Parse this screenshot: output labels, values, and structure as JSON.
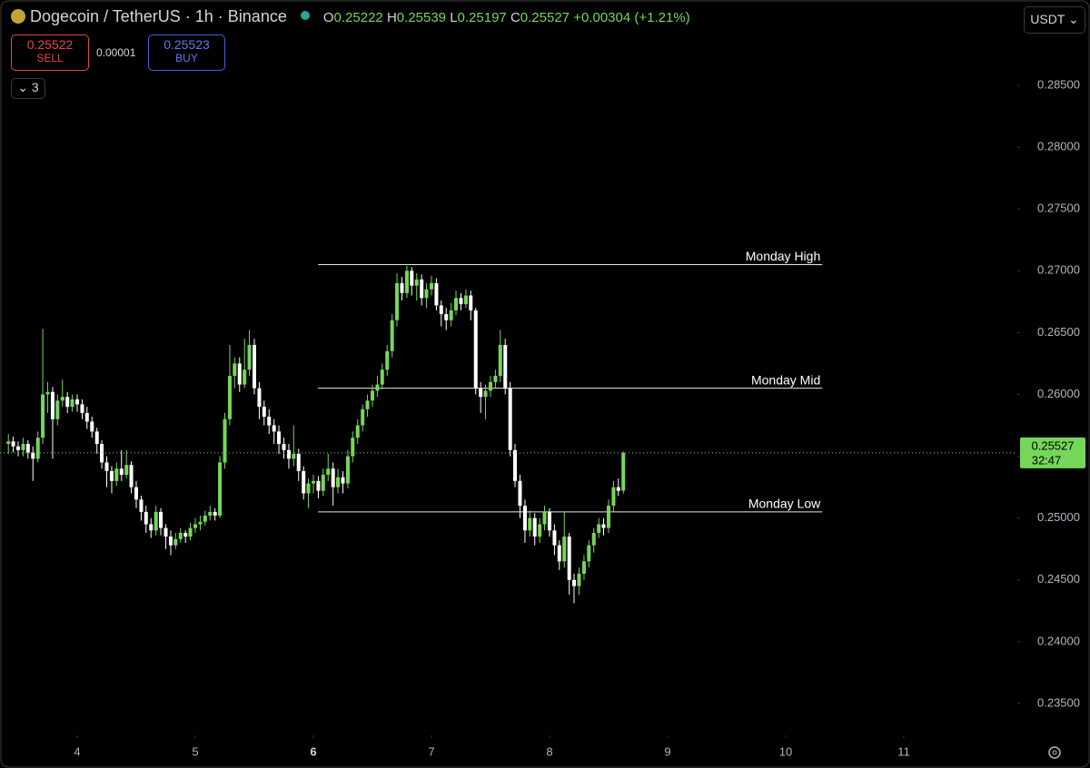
{
  "header": {
    "title": "Dogecoin / TetherUS · 1h · Binance",
    "ohlc_letters": [
      "O",
      "H",
      "L",
      "C"
    ],
    "change": "+0.00304 (+1.21%)",
    "sell_price": "0.25522",
    "sell_label": "SELL",
    "spread": "0.00001",
    "buy_price": "0.25523",
    "buy_label": "BUY",
    "indicators": "3",
    "currency": "USDT",
    "countdown": "32:47"
  },
  "chart_data": {
    "type": "candlestick",
    "up_color": "#76d65a",
    "down_color": "#ffffff",
    "x": [
      3.417,
      3.458,
      3.5,
      3.542,
      3.583,
      3.625,
      3.667,
      3.708,
      3.75,
      3.792,
      3.833,
      3.875,
      3.917,
      3.958,
      4,
      4.042,
      4.083,
      4.125,
      4.167,
      4.208,
      4.25,
      4.292,
      4.333,
      4.375,
      4.417,
      4.458,
      4.5,
      4.542,
      4.583,
      4.625,
      4.667,
      4.708,
      4.75,
      4.792,
      4.833,
      4.875,
      4.917,
      4.958,
      5,
      5.042,
      5.083,
      5.125,
      5.167,
      5.208,
      5.25,
      5.292,
      5.333,
      5.375,
      5.417,
      5.458,
      5.5,
      5.542,
      5.583,
      5.625,
      5.667,
      5.708,
      5.75,
      5.792,
      5.833,
      5.875,
      5.917,
      5.958,
      6,
      6.042,
      6.083,
      6.125,
      6.167,
      6.208,
      6.25,
      6.292,
      6.333,
      6.375,
      6.417,
      6.458,
      6.5,
      6.542,
      6.583,
      6.625,
      6.667,
      6.708,
      6.75,
      6.792,
      6.833,
      6.875,
      6.917,
      6.958,
      7,
      7.042,
      7.083,
      7.125,
      7.167,
      7.208,
      7.25,
      7.292,
      7.333,
      7.375,
      7.417,
      7.458,
      7.5,
      7.542,
      7.583,
      7.625,
      7.667,
      7.708,
      7.75,
      7.792,
      7.833,
      7.875,
      7.917,
      7.958,
      8,
      8.042,
      8.083,
      8.125,
      8.167,
      8.208,
      8.25,
      8.292,
      8.333,
      8.375,
      8.417,
      8.458,
      8.5,
      8.542,
      8.583,
      8.625
    ],
    "open": [
      0.256,
      0.2562,
      0.2558,
      0.2555,
      0.256,
      0.2553,
      0.2548,
      0.2565,
      0.26,
      0.2602,
      0.258,
      0.2595,
      0.2598,
      0.259,
      0.2596,
      0.2592,
      0.2585,
      0.2578,
      0.257,
      0.256,
      0.2545,
      0.2538,
      0.253,
      0.254,
      0.2535,
      0.2543,
      0.2525,
      0.2515,
      0.2505,
      0.2495,
      0.249,
      0.2505,
      0.2492,
      0.2485,
      0.2478,
      0.2483,
      0.2488,
      0.2485,
      0.2492,
      0.2495,
      0.2497,
      0.2502,
      0.2505,
      0.2502,
      0.2545,
      0.258,
      0.2615,
      0.2625,
      0.2608,
      0.262,
      0.264,
      0.2605,
      0.259,
      0.2582,
      0.2575,
      0.257,
      0.256,
      0.2555,
      0.2548,
      0.2552,
      0.2538,
      0.252,
      0.2528,
      0.253,
      0.2522,
      0.2535,
      0.254,
      0.2525,
      0.2533,
      0.2528,
      0.255,
      0.2565,
      0.2575,
      0.2588,
      0.2595,
      0.2603,
      0.2608,
      0.262,
      0.2635,
      0.266,
      0.269,
      0.2682,
      0.27,
      0.2688,
      0.2693,
      0.2678,
      0.2685,
      0.269,
      0.2672,
      0.2665,
      0.266,
      0.2668,
      0.2678,
      0.2673,
      0.268,
      0.2668,
      0.2605,
      0.2598,
      0.2603,
      0.261,
      0.2615,
      0.264,
      0.2605,
      0.2555,
      0.253,
      0.251,
      0.249,
      0.25,
      0.2485,
      0.2495,
      0.2505,
      0.249,
      0.2478,
      0.2465,
      0.2485,
      0.245,
      0.2445,
      0.2455,
      0.2465,
      0.2478,
      0.2488,
      0.2495,
      0.2492,
      0.251,
      0.2525,
      0.25222
    ],
    "high": [
      0.2568,
      0.2566,
      0.2562,
      0.2565,
      0.2563,
      0.2558,
      0.257,
      0.2653,
      0.261,
      0.2606,
      0.26,
      0.2612,
      0.2602,
      0.26,
      0.26,
      0.2596,
      0.259,
      0.2582,
      0.2573,
      0.2563,
      0.255,
      0.2542,
      0.2545,
      0.2555,
      0.2555,
      0.2546,
      0.253,
      0.2518,
      0.251,
      0.25,
      0.251,
      0.2508,
      0.2495,
      0.249,
      0.2488,
      0.2492,
      0.249,
      0.2496,
      0.25,
      0.2502,
      0.2506,
      0.251,
      0.2508,
      0.255,
      0.2585,
      0.264,
      0.263,
      0.263,
      0.2645,
      0.2652,
      0.2645,
      0.261,
      0.2595,
      0.2588,
      0.258,
      0.2575,
      0.2565,
      0.256,
      0.2575,
      0.2556,
      0.2542,
      0.2532,
      0.2535,
      0.2534,
      0.254,
      0.2552,
      0.2545,
      0.254,
      0.2538,
      0.2555,
      0.257,
      0.258,
      0.2592,
      0.26,
      0.2608,
      0.2615,
      0.2625,
      0.264,
      0.2665,
      0.2698,
      0.2695,
      0.2704,
      0.2703,
      0.2698,
      0.2697,
      0.269,
      0.2696,
      0.2694,
      0.2676,
      0.267,
      0.2674,
      0.2684,
      0.2682,
      0.2685,
      0.2684,
      0.267,
      0.261,
      0.2608,
      0.2615,
      0.262,
      0.2652,
      0.2645,
      0.261,
      0.256,
      0.2535,
      0.2515,
      0.2506,
      0.2504,
      0.25,
      0.251,
      0.2508,
      0.2495,
      0.2482,
      0.2505,
      0.2488,
      0.2455,
      0.246,
      0.247,
      0.2482,
      0.2492,
      0.25,
      0.25,
      0.2515,
      0.253,
      0.2532,
      0.25539
    ],
    "low": [
      0.2552,
      0.2553,
      0.255,
      0.255,
      0.2548,
      0.253,
      0.2545,
      0.256,
      0.2585,
      0.2548,
      0.2575,
      0.259,
      0.2585,
      0.2586,
      0.2586,
      0.258,
      0.2572,
      0.2565,
      0.2552,
      0.254,
      0.2525,
      0.252,
      0.2526,
      0.253,
      0.2532,
      0.252,
      0.2508,
      0.2498,
      0.2488,
      0.2484,
      0.2486,
      0.2486,
      0.2475,
      0.247,
      0.2475,
      0.248,
      0.248,
      0.2482,
      0.2488,
      0.249,
      0.2494,
      0.2498,
      0.2498,
      0.25,
      0.254,
      0.2575,
      0.2605,
      0.2602,
      0.2605,
      0.2615,
      0.26,
      0.258,
      0.2575,
      0.2568,
      0.256,
      0.2552,
      0.2548,
      0.254,
      0.2542,
      0.253,
      0.2515,
      0.2508,
      0.252,
      0.2516,
      0.2518,
      0.253,
      0.251,
      0.252,
      0.252,
      0.2524,
      0.2545,
      0.256,
      0.257,
      0.2582,
      0.259,
      0.2598,
      0.2604,
      0.2615,
      0.263,
      0.2655,
      0.2676,
      0.2678,
      0.268,
      0.2676,
      0.2672,
      0.267,
      0.268,
      0.2668,
      0.2655,
      0.2652,
      0.2655,
      0.2664,
      0.2668,
      0.267,
      0.266,
      0.26,
      0.2585,
      0.258,
      0.2598,
      0.2605,
      0.261,
      0.26,
      0.255,
      0.2525,
      0.25,
      0.248,
      0.2485,
      0.2478,
      0.248,
      0.249,
      0.2485,
      0.247,
      0.2458,
      0.246,
      0.2438,
      0.2431,
      0.2438,
      0.245,
      0.246,
      0.2472,
      0.2484,
      0.2486,
      0.2488,
      0.2505,
      0.2518,
      0.25197
    ],
    "close": [
      0.2562,
      0.2558,
      0.2555,
      0.256,
      0.2553,
      0.2548,
      0.2565,
      0.26,
      0.2602,
      0.258,
      0.2595,
      0.2598,
      0.259,
      0.2596,
      0.2592,
      0.2585,
      0.2578,
      0.257,
      0.256,
      0.2545,
      0.2538,
      0.253,
      0.254,
      0.2535,
      0.2543,
      0.2525,
      0.2515,
      0.2505,
      0.2495,
      0.249,
      0.2505,
      0.2492,
      0.2485,
      0.2478,
      0.2483,
      0.2488,
      0.2485,
      0.2492,
      0.2495,
      0.2497,
      0.2502,
      0.2505,
      0.2502,
      0.2545,
      0.258,
      0.2615,
      0.2625,
      0.2608,
      0.262,
      0.264,
      0.2605,
      0.259,
      0.2582,
      0.2575,
      0.257,
      0.256,
      0.2555,
      0.2548,
      0.2552,
      0.2538,
      0.252,
      0.2528,
      0.253,
      0.2522,
      0.2535,
      0.254,
      0.2525,
      0.2533,
      0.2528,
      0.255,
      0.2565,
      0.2575,
      0.2588,
      0.2595,
      0.2603,
      0.2608,
      0.262,
      0.2635,
      0.266,
      0.269,
      0.2682,
      0.27,
      0.2688,
      0.2693,
      0.2678,
      0.2685,
      0.269,
      0.2672,
      0.2665,
      0.266,
      0.2668,
      0.2678,
      0.2673,
      0.268,
      0.2668,
      0.2605,
      0.2598,
      0.2603,
      0.261,
      0.2615,
      0.264,
      0.2605,
      0.2555,
      0.253,
      0.251,
      0.249,
      0.25,
      0.2485,
      0.2495,
      0.2505,
      0.249,
      0.2478,
      0.2465,
      0.2485,
      0.245,
      0.2445,
      0.2455,
      0.2465,
      0.2478,
      0.2488,
      0.2495,
      0.2492,
      0.251,
      0.2525,
      0.2522,
      0.25527
    ],
    "levels": [
      {
        "label": "Monday High",
        "value": 0.2705,
        "x": [
          6.04,
          10.31
        ]
      },
      {
        "label": "Monday Mid",
        "value": 0.2605,
        "x": [
          6.04,
          10.31
        ]
      },
      {
        "label": "Monday Low",
        "value": 0.2505,
        "x": [
          6.04,
          10.31
        ]
      }
    ],
    "xlim": [
      3.346,
      11.962
    ],
    "xticks": [
      4,
      5,
      6,
      7,
      8,
      9,
      10,
      11
    ],
    "ylim": [
      0.23243,
      0.2919
    ],
    "yticks": [
      {
        "value": 0.235,
        "label": "0.23500"
      },
      {
        "value": 0.24,
        "label": "0.24000"
      },
      {
        "value": 0.245,
        "label": "0.24500"
      },
      {
        "value": 0.25,
        "label": "0.25000"
      },
      {
        "value": 0.255,
        "label": "0.25500"
      },
      {
        "value": 0.26,
        "label": "0.26000"
      },
      {
        "value": 0.265,
        "label": "0.26500"
      },
      {
        "value": 0.27,
        "label": "0.27000"
      },
      {
        "value": 0.275,
        "label": "0.27500"
      },
      {
        "value": 0.28,
        "label": "0.28000"
      },
      {
        "value": 0.285,
        "label": "0.28500"
      }
    ]
  }
}
